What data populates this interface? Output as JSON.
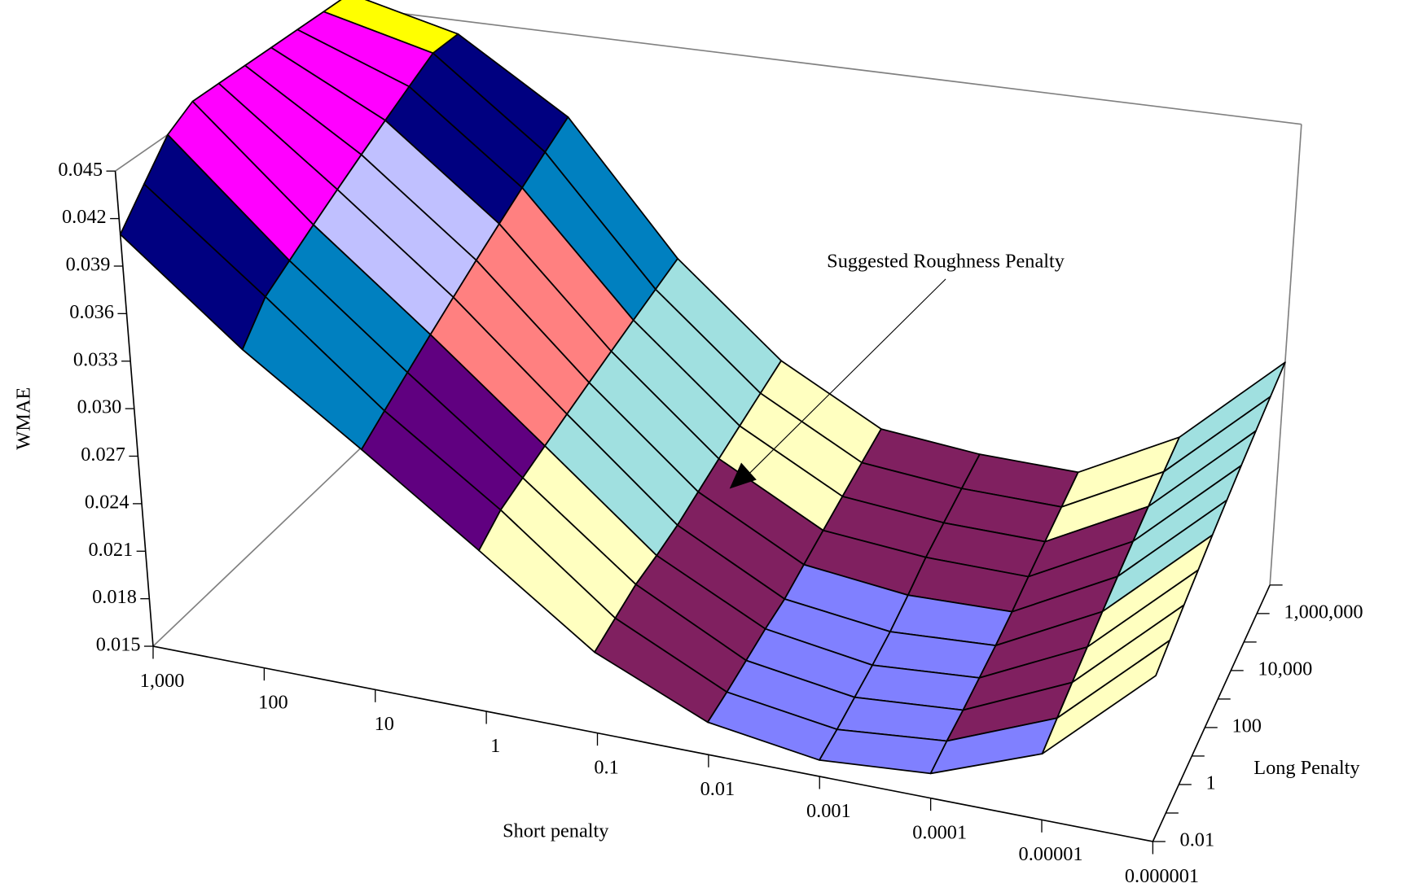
{
  "chart_data": {
    "type": "surface",
    "z_label": "WMAE",
    "x_label": "Short penalty",
    "y_label": "Long Penalty",
    "annotation": "Suggested Roughness Penalty",
    "x_categories": [
      "1,000",
      "100",
      "10",
      "1",
      "0.1",
      "0.01",
      "0.001",
      "0.0001",
      "0.00001",
      "0.000001"
    ],
    "y_categories": [
      "0.01",
      null,
      "1",
      null,
      "100",
      null,
      "10,000",
      null,
      "1,000,000",
      null
    ],
    "values": [
      [
        0.041,
        0.035,
        0.03,
        0.025,
        0.02,
        0.017,
        0.016,
        0.0165,
        0.019,
        0.025
      ],
      [
        0.043,
        0.037,
        0.031,
        0.026,
        0.0205,
        0.0172,
        0.0162,
        0.0168,
        0.0195,
        0.0255
      ],
      [
        0.045,
        0.038,
        0.032,
        0.0265,
        0.021,
        0.0175,
        0.0165,
        0.017,
        0.02,
        0.026
      ],
      [
        0.046,
        0.039,
        0.033,
        0.027,
        0.0212,
        0.0178,
        0.0168,
        0.0173,
        0.0205,
        0.0265
      ],
      [
        0.046,
        0.04,
        0.034,
        0.0275,
        0.0215,
        0.018,
        0.0172,
        0.0176,
        0.021,
        0.027
      ],
      [
        0.046,
        0.041,
        0.035,
        0.028,
        0.022,
        0.0185,
        0.0178,
        0.018,
        0.0215,
        0.0275
      ],
      [
        0.046,
        0.042,
        0.036,
        0.0285,
        0.0225,
        0.019,
        0.0185,
        0.0185,
        0.022,
        0.028
      ],
      [
        0.046,
        0.043,
        0.037,
        0.029,
        0.023,
        0.0195,
        0.019,
        0.019,
        0.0225,
        0.0285
      ],
      [
        0.046,
        0.044,
        0.038,
        0.0295,
        0.0235,
        0.02,
        0.0195,
        0.0195,
        0.023,
        0.029
      ],
      [
        0.046,
        0.044,
        0.039,
        0.03,
        0.024,
        0.0205,
        0.02,
        0.02,
        0.0235,
        0.0295
      ]
    ],
    "zlim": [
      0.015,
      0.045
    ],
    "zticks": [
      0.015,
      0.018,
      0.021,
      0.024,
      0.027,
      {
        "value": 0.03,
        "label": "0.030"
      },
      0.033,
      0.036,
      0.039,
      0.042,
      0.045
    ],
    "band_colors": [
      "#8080ff",
      "#802060",
      "#ffffc0",
      "#a0e0e0",
      "#600080",
      "#ff8080",
      "#0080c0",
      "#c0c0ff",
      "#000080",
      "#ff00ff",
      "#ffff00"
    ]
  }
}
